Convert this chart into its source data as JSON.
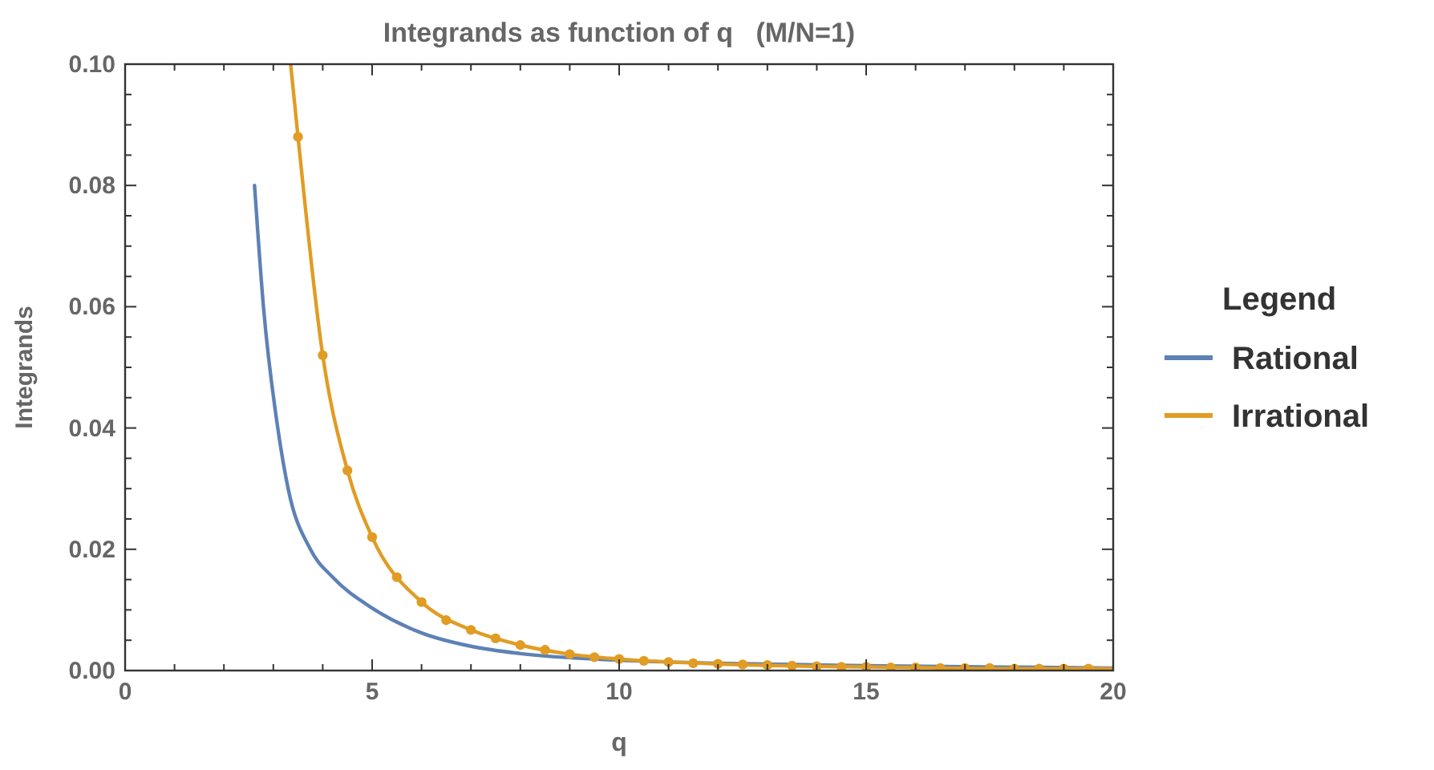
{
  "chart_data": {
    "type": "line",
    "title": "Integrands as function of q   (M/N=1)",
    "xlabel": "q",
    "ylabel": "Integrands",
    "legend_title": "Legend",
    "legend": "right",
    "grid": false,
    "line_style": "solid",
    "marker": "none",
    "xlim": [
      0,
      20
    ],
    "ylim": [
      0,
      0.1
    ],
    "xticks": [
      0,
      {
        "value": 1,
        "label": null
      },
      {
        "value": 2,
        "label": null
      },
      {
        "value": 3,
        "label": null
      },
      {
        "value": 4,
        "label": null
      },
      5,
      {
        "value": 6,
        "label": null
      },
      {
        "value": 7,
        "label": null
      },
      {
        "value": 8,
        "label": null
      },
      {
        "value": 9,
        "label": null
      },
      10,
      {
        "value": 11,
        "label": null
      },
      {
        "value": 12,
        "label": null
      },
      {
        "value": 13,
        "label": null
      },
      {
        "value": 14,
        "label": null
      },
      15,
      {
        "value": 16,
        "label": null
      },
      {
        "value": 17,
        "label": null
      },
      {
        "value": 18,
        "label": null
      },
      {
        "value": 19,
        "label": null
      },
      20
    ],
    "yticks": [
      {
        "value": 0,
        "label": "0.00"
      },
      {
        "value": 0.005,
        "label": null
      },
      {
        "value": 0.01,
        "label": null
      },
      {
        "value": 0.015,
        "label": null
      },
      {
        "value": 0.02,
        "label": "0.02"
      },
      {
        "value": 0.025,
        "label": null
      },
      {
        "value": 0.03,
        "label": null
      },
      {
        "value": 0.035,
        "label": null
      },
      {
        "value": 0.04,
        "label": "0.04"
      },
      {
        "value": 0.045,
        "label": null
      },
      {
        "value": 0.05,
        "label": null
      },
      {
        "value": 0.055,
        "label": null
      },
      {
        "value": 0.06,
        "label": "0.06"
      },
      {
        "value": 0.065,
        "label": null
      },
      {
        "value": 0.07,
        "label": null
      },
      {
        "value": 0.075,
        "label": null
      },
      {
        "value": 0.08,
        "label": "0.08"
      },
      {
        "value": 0.085,
        "label": null
      },
      {
        "value": 0.09,
        "label": null
      },
      {
        "value": 0.095,
        "label": null
      },
      {
        "value": 0.1,
        "label": "0.10"
      }
    ],
    "series": [
      {
        "name": "Rational",
        "color": "#5e81b5",
        "x": [
          2.62,
          2.8,
          3.09,
          3.3,
          3.75,
          4.2,
          5,
          6,
          7,
          8,
          10,
          12,
          15,
          20
        ],
        "values": [
          0.08,
          0.06,
          0.04,
          0.03,
          0.02,
          0.0154,
          0.0103,
          0.0062,
          0.004,
          0.0028,
          0.0017,
          0.0012,
          0.0008,
          0.0004
        ]
      },
      {
        "name": "Irrational",
        "color": "#e19c24",
        "x": [
          3.35,
          3.5,
          4,
          4.5,
          5,
          6,
          7,
          8,
          9,
          10,
          12,
          14,
          16,
          18,
          20
        ],
        "values": [
          0.1,
          0.088,
          0.052,
          0.033,
          0.022,
          0.0113,
          0.0067,
          0.0042,
          0.0027,
          0.0019,
          0.0011,
          0.0007,
          0.0005,
          0.0003,
          0.0003
        ]
      },
      {
        "type": "scatter",
        "marker": "circle",
        "color": "#e19c24",
        "x": [
          3.5,
          4,
          4.5,
          5,
          5.5,
          6,
          6.5,
          7,
          7.5,
          8,
          8.5,
          9,
          9.5,
          10,
          10.5,
          11,
          11.5,
          12,
          12.5,
          13,
          13.5,
          14,
          14.5,
          15,
          15.5,
          16,
          16.5,
          17,
          17.5,
          18,
          18.5,
          19,
          19.5
        ],
        "values": [
          0.088,
          0.052,
          0.033,
          0.022,
          0.0154,
          0.0113,
          0.0083,
          0.0067,
          0.0053,
          0.0042,
          0.0034,
          0.0027,
          0.0022,
          0.0019,
          0.0016,
          0.0014,
          0.0012,
          0.0011,
          0.001,
          0.0009,
          0.0008,
          0.0007,
          0.0006,
          0.0006,
          0.0005,
          0.0005,
          0.0004,
          0.0004,
          0.0004,
          0.0003,
          0.0003,
          0.0003,
          0.0003
        ]
      }
    ]
  }
}
